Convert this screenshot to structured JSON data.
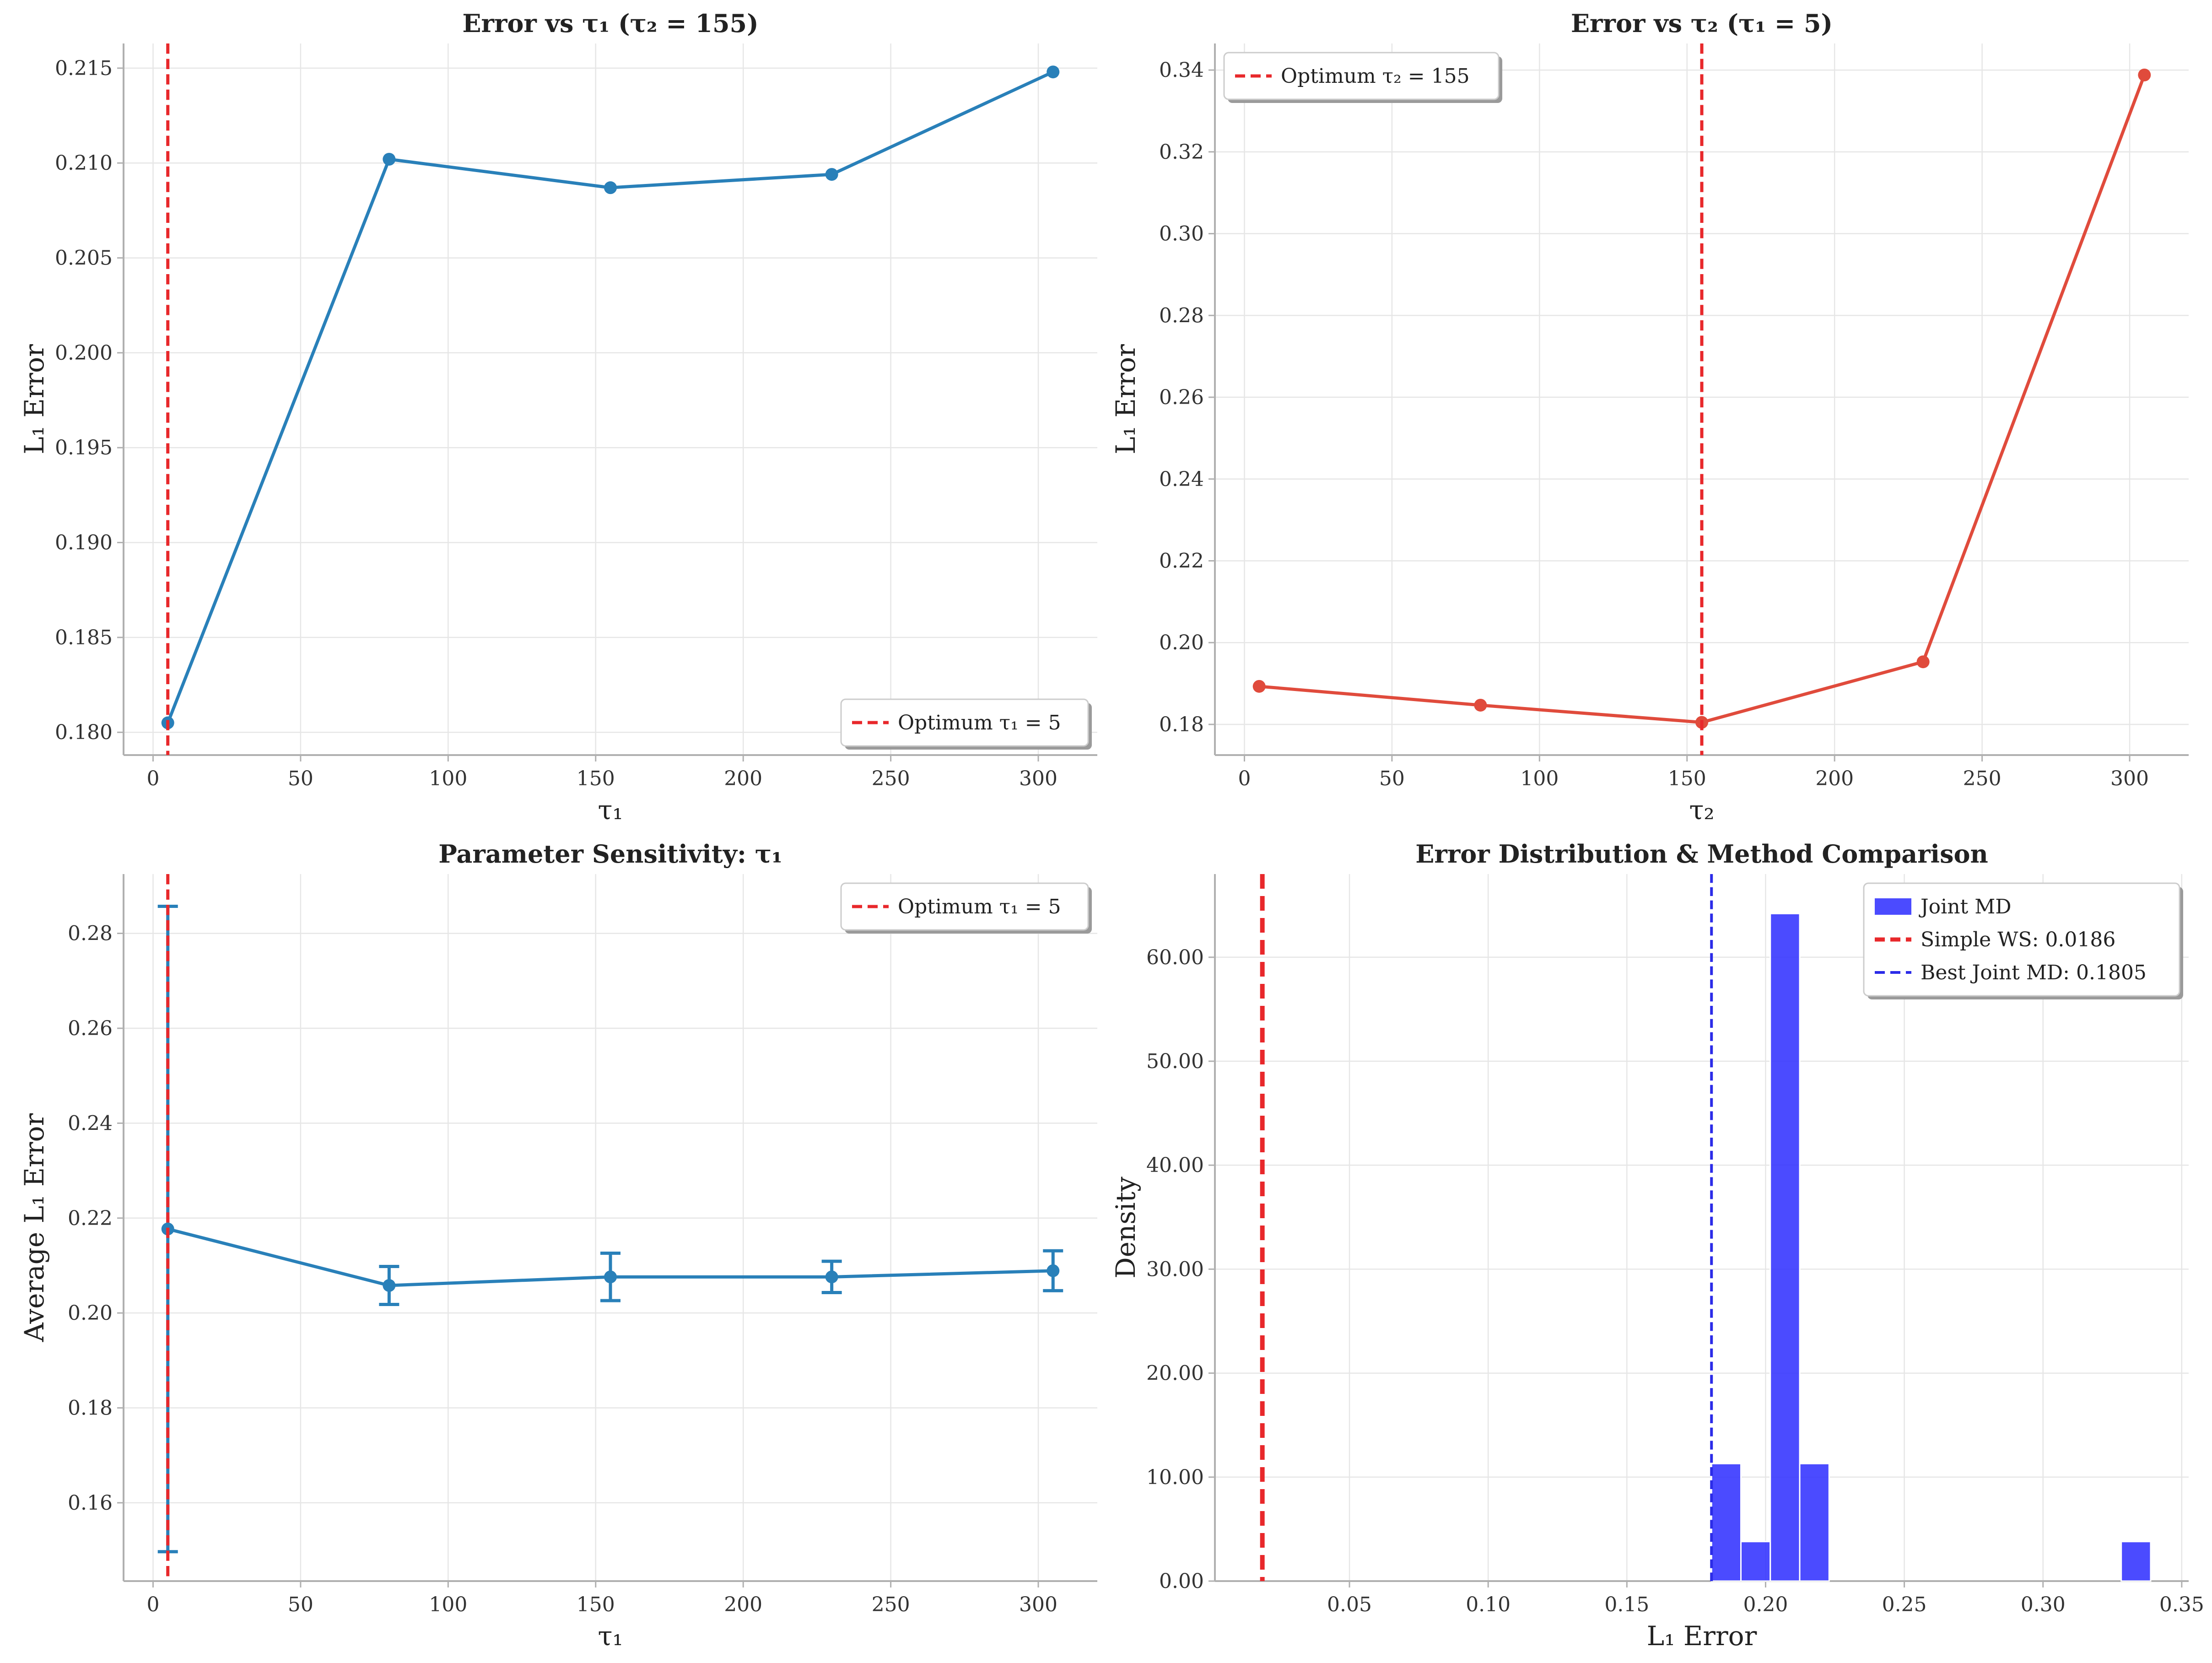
{
  "chart_data": [
    {
      "id": "p1",
      "type": "line",
      "title": "Error vs τ₁ (τ₂ = 155)",
      "xlabel": "τ₁",
      "ylabel": "L₁ Error",
      "xlim": [
        -10,
        320
      ],
      "ylim": [
        0.1788,
        0.2163
      ],
      "xticks": [
        0,
        50,
        100,
        150,
        200,
        250,
        300
      ],
      "yticks": [
        0.18,
        0.185,
        0.19,
        0.195,
        0.2,
        0.205,
        0.21,
        0.215
      ],
      "tick_decimals": 3,
      "grid": true,
      "legend_position": "lower-right",
      "series": [
        {
          "x": [
            5,
            80,
            155,
            230,
            305
          ],
          "y": [
            0.1805,
            0.2102,
            0.2087,
            0.2094,
            0.2148
          ],
          "color": "#2980b9"
        }
      ],
      "vlines": [
        {
          "x": 5,
          "color": "#e8282b",
          "label": "Optimum τ₁ = 5"
        }
      ]
    },
    {
      "id": "p2",
      "type": "line",
      "title": "Error vs τ₂ (τ₁ = 5)",
      "xlabel": "τ₂",
      "ylabel": "L₁ Error",
      "xlim": [
        -10,
        320
      ],
      "ylim": [
        0.1725,
        0.3465
      ],
      "xticks": [
        0,
        50,
        100,
        150,
        200,
        250,
        300
      ],
      "yticks": [
        0.18,
        0.2,
        0.22,
        0.24,
        0.26,
        0.28,
        0.3,
        0.32,
        0.34
      ],
      "tick_decimals": 2,
      "grid": true,
      "legend_position": "top-left",
      "series": [
        {
          "x": [
            5,
            80,
            155,
            230,
            305
          ],
          "y": [
            0.1893,
            0.1847,
            0.1805,
            0.1953,
            0.3388
          ],
          "color": "#e04b3c"
        }
      ],
      "vlines": [
        {
          "x": 155,
          "color": "#e8282b",
          "label": "Optimum τ₂ = 155"
        }
      ]
    },
    {
      "id": "p3",
      "type": "line",
      "title": "Parameter Sensitivity: τ₁",
      "xlabel": "τ₁",
      "ylabel": "Average L₁ Error",
      "xlim": [
        -10,
        320
      ],
      "ylim": [
        0.1435,
        0.2925
      ],
      "xticks": [
        0,
        50,
        100,
        150,
        200,
        250,
        300
      ],
      "yticks": [
        0.16,
        0.18,
        0.2,
        0.22,
        0.24,
        0.26,
        0.28
      ],
      "tick_decimals": 2,
      "grid": true,
      "legend_position": "top-right",
      "series": [
        {
          "x": [
            5,
            80,
            155,
            230,
            305
          ],
          "y": [
            0.2177,
            0.2058,
            0.2076,
            0.2076,
            0.2089
          ],
          "err": [
            0.068,
            0.004,
            0.005,
            0.0033,
            0.0042
          ],
          "color": "#2980b9"
        }
      ],
      "vlines": [
        {
          "x": 5,
          "color": "#e8282b",
          "label": "Optimum τ₁ = 5"
        }
      ]
    },
    {
      "id": "p4",
      "type": "bar",
      "title": "Error Distribution & Method Comparison",
      "xlabel": "L₁ Error",
      "ylabel": "Density",
      "xlim": [
        0.0015,
        0.3525
      ],
      "ylim": [
        0,
        68
      ],
      "xticks": [
        0.05,
        0.1,
        0.15,
        0.2,
        0.25,
        0.3,
        0.35
      ],
      "yticks": [
        0,
        10,
        20,
        30,
        40,
        50,
        60
      ],
      "tick_decimals": 2,
      "grid": true,
      "legend_position": "top-right",
      "histogram": {
        "name": "Joint MD",
        "color": "#2b2bff",
        "bins": [
          {
            "x0": 0.1805,
            "x1": 0.1911,
            "density": 11.3
          },
          {
            "x0": 0.1911,
            "x1": 0.2017,
            "density": 3.8
          },
          {
            "x0": 0.2017,
            "x1": 0.2123,
            "density": 64.2
          },
          {
            "x0": 0.2123,
            "x1": 0.2229,
            "density": 11.3
          },
          {
            "x0": 0.3282,
            "x1": 0.3388,
            "density": 3.8
          }
        ]
      },
      "vlines": [
        {
          "x": 0.0186,
          "color": "#e8282b",
          "label": "Simple WS: 0.0186",
          "width": 10
        },
        {
          "x": 0.1805,
          "color": "#2b2be8",
          "label": "Best Joint MD: 0.1805",
          "width": 6
        }
      ]
    }
  ]
}
